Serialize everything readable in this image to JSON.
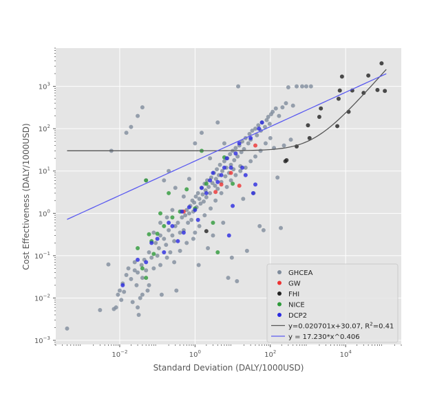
{
  "chart_data": {
    "type": "scatter",
    "title": "",
    "xlabel": "Standard Deviation (DALY/1000USD)",
    "ylabel": "Cost Effectiveness (DALY/1000USD)",
    "xscale": "log",
    "yscale": "log",
    "xlim": [
      0.0002,
      300000
    ],
    "ylim": [
      0.0008,
      8000
    ],
    "grid": true,
    "legend_placement": "lower-right",
    "x_ticks": [
      {
        "value": 0.01,
        "label": "10",
        "exp": "−2"
      },
      {
        "value": 1,
        "label": "10",
        "exp": "0"
      },
      {
        "value": 100,
        "label": "10",
        "exp": "2"
      },
      {
        "value": 10000,
        "label": "10",
        "exp": "4"
      }
    ],
    "y_ticks": [
      {
        "value": 0.001,
        "label": "10",
        "exp": "−3"
      },
      {
        "value": 0.01,
        "label": "10",
        "exp": "−2"
      },
      {
        "value": 0.1,
        "label": "10",
        "exp": "−1"
      },
      {
        "value": 1,
        "label": "10",
        "exp": "0"
      },
      {
        "value": 10,
        "label": "10",
        "exp": "1"
      },
      {
        "value": 100,
        "label": "10",
        "exp": "2"
      },
      {
        "value": 1000,
        "label": "10",
        "exp": "3"
      }
    ],
    "series": [
      {
        "name": "GHCEA",
        "color": "#7f8c9c",
        "points": [
          [
            0.0004,
            0.0019
          ],
          [
            0.003,
            0.0052
          ],
          [
            0.005,
            0.062
          ],
          [
            0.007,
            0.0055
          ],
          [
            0.008,
            0.006
          ],
          [
            0.009,
            0.012
          ],
          [
            0.01,
            0.015
          ],
          [
            0.011,
            0.009
          ],
          [
            0.012,
            0.022
          ],
          [
            0.013,
            0.014
          ],
          [
            0.015,
            0.035
          ],
          [
            0.017,
            0.05
          ],
          [
            0.02,
            0.028
          ],
          [
            0.022,
            0.008
          ],
          [
            0.025,
            0.045
          ],
          [
            0.028,
            0.02
          ],
          [
            0.03,
            0.006
          ],
          [
            0.032,
            0.004
          ],
          [
            0.035,
            0.01
          ],
          [
            0.038,
            0.06
          ],
          [
            0.04,
            0.03
          ],
          [
            0.045,
            0.08
          ],
          [
            0.05,
            0.045
          ],
          [
            0.055,
            0.015
          ],
          [
            0.06,
            0.12
          ],
          [
            0.07,
            0.09
          ],
          [
            0.08,
            0.05
          ],
          [
            0.09,
            0.2
          ],
          [
            0.1,
            0.1
          ],
          [
            0.11,
            0.15
          ],
          [
            0.12,
            0.3
          ],
          [
            0.13,
            0.012
          ],
          [
            0.15,
            0.25
          ],
          [
            0.17,
            0.18
          ],
          [
            0.2,
            0.4
          ],
          [
            0.22,
            0.12
          ],
          [
            0.25,
            0.3
          ],
          [
            0.28,
            0.22
          ],
          [
            0.3,
            0.5
          ],
          [
            0.32,
            0.015
          ],
          [
            0.35,
            0.6
          ],
          [
            0.4,
            0.35
          ],
          [
            0.45,
            0.8
          ],
          [
            0.5,
            0.4
          ],
          [
            0.55,
            0.9
          ],
          [
            0.6,
            1.2
          ],
          [
            0.65,
            0.6
          ],
          [
            0.7,
            1.0
          ],
          [
            0.75,
            1.5
          ],
          [
            0.8,
            0.7
          ],
          [
            0.85,
            2.0
          ],
          [
            0.9,
            1.1
          ],
          [
            0.95,
            1.8
          ],
          [
            1.0,
            0.35
          ],
          [
            1.05,
            2.5
          ],
          [
            1.1,
            1.4
          ],
          [
            1.2,
            3.0
          ],
          [
            1.25,
            0.06
          ],
          [
            1.3,
            2.2
          ],
          [
            1.4,
            1.7
          ],
          [
            1.5,
            4.0
          ],
          [
            1.6,
            2.8
          ],
          [
            1.7,
            1.9
          ],
          [
            1.8,
            5.0
          ],
          [
            1.9,
            3.5
          ],
          [
            2.0,
            2.4
          ],
          [
            2.1,
            6.0
          ],
          [
            2.2,
            0.15
          ],
          [
            2.3,
            4.2
          ],
          [
            2.5,
            3.0
          ],
          [
            2.7,
            7.0
          ],
          [
            2.9,
            5.2
          ],
          [
            3.0,
            0.3
          ],
          [
            3.2,
            9.0
          ],
          [
            3.4,
            4.5
          ],
          [
            3.6,
            6.5
          ],
          [
            3.8,
            11.0
          ],
          [
            4.0,
            3.8
          ],
          [
            4.3,
            8.0
          ],
          [
            4.6,
            14.0
          ],
          [
            5.0,
            5.5
          ],
          [
            5.3,
            10.0
          ],
          [
            5.6,
            0.6
          ],
          [
            6.0,
            17.0
          ],
          [
            6.4,
            7.5
          ],
          [
            6.8,
            12.0
          ],
          [
            7.2,
            20.0
          ],
          [
            7.6,
            0.03
          ],
          [
            8.0,
            9.0
          ],
          [
            8.5,
            25.0
          ],
          [
            9.0,
            14.0
          ],
          [
            9.5,
            0.09
          ],
          [
            10.0,
            30.0
          ],
          [
            10.5,
            11.0
          ],
          [
            11,
            18.0
          ],
          [
            12,
            35.0
          ],
          [
            13,
            0.025
          ],
          [
            13.5,
            22.0
          ],
          [
            14,
            1000
          ],
          [
            15,
            40.0
          ],
          [
            16,
            13.0
          ],
          [
            17,
            28.0
          ],
          [
            18,
            50.0
          ],
          [
            19,
            2.2
          ],
          [
            20,
            33.0
          ],
          [
            22,
            60.0
          ],
          [
            24,
            0.13
          ],
          [
            26,
            45.0
          ],
          [
            28,
            75.0
          ],
          [
            30,
            55.0
          ],
          [
            33,
            90.0
          ],
          [
            36,
            3.0
          ],
          [
            40,
            100.0
          ],
          [
            44,
            70.0
          ],
          [
            48,
            120.0
          ],
          [
            52,
            0.5
          ],
          [
            56,
            90.0
          ],
          [
            60,
            140.0
          ],
          [
            66,
            0.4
          ],
          [
            72,
            110.0
          ],
          [
            80,
            160.0
          ],
          [
            88,
            190.0
          ],
          [
            96,
            130.0
          ],
          [
            105,
            220.0
          ],
          [
            115,
            250.0
          ],
          [
            125,
            35.0
          ],
          [
            140,
            300.0
          ],
          [
            155,
            7.0
          ],
          [
            170,
            200.0
          ],
          [
            190,
            0.45
          ],
          [
            210,
            320.0
          ],
          [
            230,
            40.0
          ],
          [
            260,
            400.0
          ],
          [
            300,
            950
          ],
          [
            350,
            55.0
          ],
          [
            400,
            350.0
          ],
          [
            500,
            1000
          ],
          [
            700,
            1000
          ],
          [
            900,
            1000
          ],
          [
            1200,
            1000
          ],
          [
            0.015,
            80.0
          ],
          [
            0.02,
            110.0
          ],
          [
            0.03,
            200.0
          ],
          [
            0.04,
            320.0
          ],
          [
            0.006,
            30.0
          ],
          [
            0.05,
            6.0
          ],
          [
            0.2,
            10.0
          ],
          [
            0.15,
            6.0
          ],
          [
            0.3,
            4.0
          ],
          [
            0.5,
            2.5
          ],
          [
            0.7,
            6.5
          ],
          [
            1.0,
            45.0
          ],
          [
            1.5,
            80.0
          ],
          [
            2.5,
            20.0
          ],
          [
            4.0,
            140.0
          ],
          [
            6.0,
            45.0
          ],
          [
            0.25,
            1.2
          ],
          [
            0.18,
            0.8
          ],
          [
            0.12,
            0.6
          ],
          [
            0.08,
            0.35
          ],
          [
            0.06,
            0.02
          ],
          [
            0.04,
            0.012
          ],
          [
            0.03,
            0.04
          ],
          [
            0.025,
            0.07
          ],
          [
            0.12,
            0.06
          ],
          [
            0.18,
            0.09
          ],
          [
            0.28,
            0.07
          ],
          [
            0.4,
            0.13
          ],
          [
            0.6,
            0.2
          ],
          [
            0.9,
            0.25
          ],
          [
            1.3,
            0.5
          ],
          [
            1.8,
            0.9
          ],
          [
            2.6,
            1.3
          ],
          [
            3.5,
            2.0
          ],
          [
            5.0,
            3.0
          ],
          [
            7.0,
            4.2
          ],
          [
            9.0,
            6.0
          ],
          [
            12,
            8.0
          ],
          [
            16,
            10.0
          ],
          [
            22,
            12.0
          ],
          [
            30,
            17.0
          ],
          [
            40,
            22.0
          ],
          [
            55,
            30.0
          ],
          [
            75,
            45.0
          ],
          [
            100,
            60.0
          ]
        ]
      },
      {
        "name": "GW",
        "color": "#ee3333",
        "points": [
          [
            0.5,
            1.1
          ],
          [
            3.5,
            3.2
          ],
          [
            5.0,
            4.8
          ],
          [
            9.0,
            9.0
          ],
          [
            15,
            4.5
          ],
          [
            40,
            40.0
          ]
        ]
      },
      {
        "name": "FHI",
        "color": "#222222",
        "points": [
          [
            2.0,
            0.38
          ],
          [
            250,
            17.0
          ],
          [
            270,
            18.0
          ],
          [
            500,
            38.0
          ],
          [
            1000,
            120
          ],
          [
            1100,
            60
          ],
          [
            2000,
            190
          ],
          [
            2200,
            300
          ],
          [
            6000,
            115
          ],
          [
            6500,
            510
          ],
          [
            7000,
            800
          ],
          [
            8000,
            1700
          ],
          [
            12000,
            250
          ],
          [
            15000,
            800
          ],
          [
            30000,
            700
          ],
          [
            40000,
            1800
          ],
          [
            70000,
            820
          ],
          [
            90000,
            3500
          ],
          [
            110000,
            780
          ]
        ]
      },
      {
        "name": "NICE",
        "color": "#2e9a3a",
        "points": [
          [
            0.03,
            0.15
          ],
          [
            0.04,
            0.05
          ],
          [
            0.05,
            0.03
          ],
          [
            0.06,
            0.32
          ],
          [
            0.07,
            0.22
          ],
          [
            0.08,
            0.11
          ],
          [
            0.1,
            0.33
          ],
          [
            0.12,
            1.0
          ],
          [
            0.15,
            0.5
          ],
          [
            0.2,
            3.0
          ],
          [
            0.25,
            0.8
          ],
          [
            0.4,
            1.1
          ],
          [
            0.6,
            3.7
          ],
          [
            1.0,
            1.3
          ],
          [
            1.5,
            30.0
          ],
          [
            2.0,
            5.0
          ],
          [
            3.0,
            0.6
          ],
          [
            4.0,
            0.12
          ],
          [
            6.0,
            21.0
          ],
          [
            10,
            5.0
          ],
          [
            0.05,
            6.0
          ]
        ]
      },
      {
        "name": "DCP2",
        "color": "#2a2ae0",
        "points": [
          [
            0.012,
            0.02
          ],
          [
            0.03,
            0.08
          ],
          [
            0.05,
            0.07
          ],
          [
            0.07,
            0.2
          ],
          [
            0.1,
            0.25
          ],
          [
            0.15,
            0.12
          ],
          [
            0.2,
            0.6
          ],
          [
            0.25,
            0.5
          ],
          [
            0.35,
            0.22
          ],
          [
            0.45,
            1.1
          ],
          [
            0.5,
            0.35
          ],
          [
            0.7,
            1.4
          ],
          [
            1.0,
            1.2
          ],
          [
            1.2,
            0.7
          ],
          [
            1.5,
            4.0
          ],
          [
            2.0,
            3.0
          ],
          [
            2.5,
            6.0
          ],
          [
            3.0,
            9.0
          ],
          [
            4.0,
            5.5
          ],
          [
            5.0,
            8.0
          ],
          [
            6.0,
            12.0
          ],
          [
            7.0,
            20.0
          ],
          [
            8.0,
            0.3
          ],
          [
            9.0,
            12.0
          ],
          [
            10.0,
            1.5
          ],
          [
            12,
            26.0
          ],
          [
            15,
            45.0
          ],
          [
            18,
            12.0
          ],
          [
            22,
            8.0
          ],
          [
            30,
            60.0
          ],
          [
            35,
            3.0
          ],
          [
            40,
            4.8
          ],
          [
            50,
            100.0
          ],
          [
            60,
            140.0
          ]
        ]
      }
    ],
    "fits": [
      {
        "name": "linear",
        "label": "y=0.020701x+30.07, R",
        "label_sup": "2",
        "label_tail": "=0.41",
        "color": "#555555",
        "a": 0.020701,
        "b": 30.07
      },
      {
        "name": "power",
        "label": "y = 17.230*x^0.406",
        "color": "#5a5af0",
        "a": 17.23,
        "b": 0.406
      }
    ],
    "fit_x_range": [
      0.0004,
      120000
    ]
  }
}
